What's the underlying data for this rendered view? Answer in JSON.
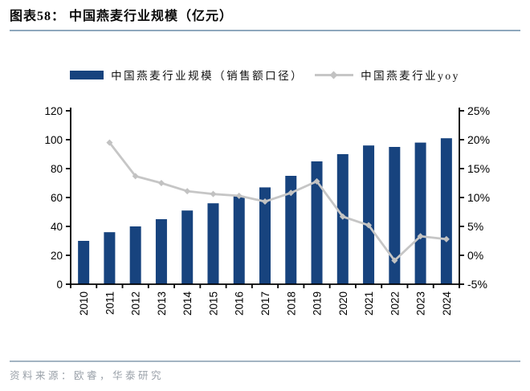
{
  "header": {
    "title": "图表58：  中国燕麦行业规模（亿元）"
  },
  "legend": {
    "items": [
      {
        "label": "中国燕麦行业规模（销售额口径）",
        "swatch": "bar-swatch"
      },
      {
        "label": "中国燕麦行业yoy",
        "swatch": "line-swatch"
      }
    ]
  },
  "footer": {
    "source": "资料来源：欧睿，华泰研究"
  },
  "colors": {
    "bar": "#17437e",
    "line": "#c6c6c6",
    "marker": "#c2c2c2",
    "axis": "#000000",
    "title_rule": "#8fa8bd",
    "footer_rule": "#a3b4c2",
    "footer_text": "#9aa1a9"
  },
  "chart_data": {
    "type": "bar",
    "title": "中国燕麦行业规模（亿元）",
    "categories": [
      "2010",
      "2011",
      "2012",
      "2013",
      "2014",
      "2015",
      "2016",
      "2017",
      "2018",
      "2019",
      "2020",
      "2021",
      "2022",
      "2023",
      "2024"
    ],
    "series": [
      {
        "name": "中国燕麦行业规模（销售额口径）",
        "type": "bar",
        "axis": "left",
        "color": "#17437e",
        "values": [
          30,
          36,
          40,
          45,
          51,
          56,
          61,
          67,
          75,
          85,
          90,
          96,
          95,
          98,
          101
        ]
      },
      {
        "name": "中国燕麦行业yoy",
        "type": "line",
        "axis": "right",
        "color": "#c6c6c6",
        "unit": "%",
        "values": [
          null,
          19.5,
          13.7,
          12.5,
          11.1,
          10.6,
          10.3,
          9.3,
          10.8,
          12.8,
          6.7,
          5.2,
          -0.9,
          3.3,
          2.8
        ]
      }
    ],
    "left_axis": {
      "min": 0,
      "max": 120,
      "step": 20
    },
    "right_axis": {
      "min": -5,
      "max": 25,
      "step": 5,
      "suffix": "%"
    },
    "grid": false,
    "legend_position": "top",
    "xlabel": "",
    "ylabel_left": "",
    "ylabel_right": ""
  }
}
